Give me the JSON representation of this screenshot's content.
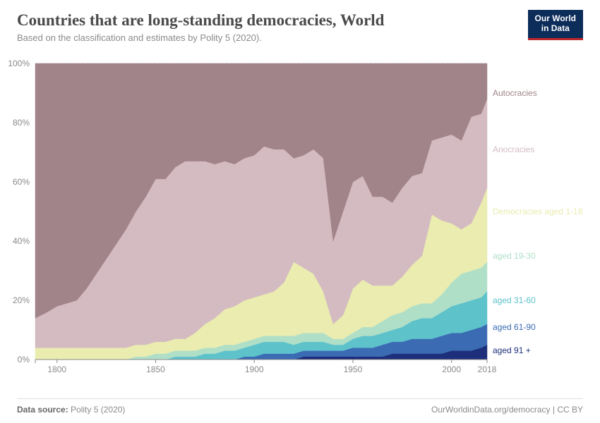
{
  "header": {
    "title": "Countries that are long-standing democracies, World",
    "subtitle": "Based on the classification and estimates by Polity 5 (2020).",
    "logo_line1": "Our World",
    "logo_line2": "in Data"
  },
  "footer": {
    "source_label": "Data source:",
    "source_value": "Polity 5 (2020)",
    "attribution": "OurWorldinData.org/democracy | CC BY"
  },
  "chart": {
    "type": "stacked-area-100pct",
    "xlim": [
      1789,
      2018
    ],
    "ylim": [
      0,
      100
    ],
    "xticks": [
      1800,
      1850,
      1900,
      1950,
      2000,
      2018
    ],
    "yticks": [
      0,
      20,
      40,
      60,
      80,
      100
    ],
    "ytick_suffix": "%",
    "background_color": "#ffffff",
    "grid_color": "#d0d0d0",
    "axis_label_color": "#8a8a8a",
    "axis_fontsize": 12,
    "stack_order_bottom_to_top": [
      "aged_91_plus",
      "aged_61_90",
      "aged_31_60",
      "aged_19_30",
      "dem_1_18",
      "anocracies",
      "autocracies"
    ],
    "series": {
      "autocracies": {
        "label": "Autocracies",
        "color": "#a18489",
        "label_y_pct": 90
      },
      "anocracies": {
        "label": "Anocracies",
        "color": "#d4bbc1",
        "label_y_pct": 71
      },
      "dem_1_18": {
        "label": "Democracies aged 1-18",
        "color": "#eaecb0",
        "label_y_pct": 50
      },
      "aged_19_30": {
        "label": "aged 19-30",
        "color": "#b0dfc8",
        "label_y_pct": 35
      },
      "aged_31_60": {
        "label": "aged 31-60",
        "color": "#5ec2cb",
        "label_y_pct": 20
      },
      "aged_61_90": {
        "label": "aged 61-90",
        "color": "#3b6bb3",
        "label_y_pct": 11
      },
      "aged_91_plus": {
        "label": "aged 91 +",
        "color": "#1d2e7a",
        "label_y_pct": 3
      }
    },
    "years": [
      1789,
      1795,
      1800,
      1805,
      1810,
      1815,
      1820,
      1825,
      1830,
      1835,
      1840,
      1845,
      1850,
      1855,
      1860,
      1865,
      1870,
      1875,
      1880,
      1885,
      1890,
      1895,
      1900,
      1905,
      1910,
      1915,
      1920,
      1925,
      1930,
      1935,
      1940,
      1945,
      1950,
      1955,
      1960,
      1965,
      1970,
      1975,
      1980,
      1985,
      1990,
      1995,
      2000,
      2005,
      2010,
      2015,
      2018
    ],
    "data_pct": {
      "aged_91_plus": [
        0,
        0,
        0,
        0,
        0,
        0,
        0,
        0,
        0,
        0,
        0,
        0,
        0,
        0,
        0,
        0,
        0,
        0,
        0,
        0,
        0,
        0,
        0,
        0,
        0,
        0,
        0,
        1,
        1,
        1,
        1,
        1,
        1,
        1,
        1,
        1,
        2,
        2,
        2,
        2,
        2,
        2,
        3,
        3,
        3,
        4,
        5
      ],
      "aged_61_90": [
        0,
        0,
        0,
        0,
        0,
        0,
        0,
        0,
        0,
        0,
        0,
        0,
        0,
        0,
        0,
        0,
        0,
        0,
        0,
        0,
        0,
        1,
        1,
        2,
        2,
        2,
        2,
        2,
        2,
        2,
        2,
        2,
        3,
        3,
        3,
        4,
        4,
        4,
        5,
        5,
        5,
        6,
        6,
        6,
        7,
        7,
        7
      ],
      "aged_31_60": [
        0,
        0,
        0,
        0,
        0,
        0,
        0,
        0,
        0,
        0,
        0,
        0,
        0,
        0,
        1,
        1,
        1,
        2,
        2,
        3,
        3,
        3,
        4,
        4,
        4,
        4,
        3,
        3,
        3,
        3,
        2,
        2,
        3,
        4,
        4,
        4,
        4,
        5,
        6,
        7,
        7,
        8,
        9,
        10,
        10,
        10,
        11
      ],
      "aged_19_30": [
        0,
        0,
        0,
        0,
        0,
        0,
        0,
        0,
        0,
        0,
        1,
        1,
        2,
        2,
        2,
        2,
        2,
        2,
        2,
        2,
        2,
        2,
        2,
        2,
        2,
        2,
        3,
        3,
        3,
        3,
        2,
        2,
        2,
        3,
        3,
        4,
        5,
        5,
        5,
        5,
        5,
        6,
        8,
        10,
        10,
        10,
        10
      ],
      "dem_1_18": [
        4,
        4,
        4,
        4,
        4,
        4,
        4,
        4,
        4,
        4,
        4,
        4,
        4,
        4,
        4,
        4,
        6,
        8,
        10,
        12,
        13,
        14,
        14,
        14,
        15,
        18,
        25,
        22,
        20,
        14,
        5,
        8,
        15,
        16,
        14,
        12,
        10,
        12,
        14,
        16,
        30,
        25,
        20,
        15,
        16,
        22,
        25
      ],
      "anocracies": [
        10,
        12,
        14,
        15,
        16,
        20,
        25,
        30,
        35,
        40,
        45,
        50,
        55,
        55,
        58,
        60,
        58,
        55,
        52,
        50,
        48,
        48,
        48,
        50,
        48,
        45,
        35,
        38,
        42,
        45,
        28,
        35,
        36,
        35,
        30,
        30,
        28,
        30,
        30,
        28,
        25,
        28,
        30,
        30,
        36,
        30,
        30
      ],
      "autocracies": [
        86,
        84,
        82,
        81,
        80,
        76,
        71,
        66,
        61,
        56,
        50,
        45,
        39,
        39,
        35,
        33,
        33,
        33,
        34,
        33,
        34,
        32,
        31,
        28,
        29,
        29,
        32,
        31,
        29,
        32,
        60,
        50,
        40,
        38,
        45,
        45,
        47,
        42,
        38,
        37,
        26,
        25,
        24,
        26,
        18,
        17,
        12
      ]
    }
  }
}
